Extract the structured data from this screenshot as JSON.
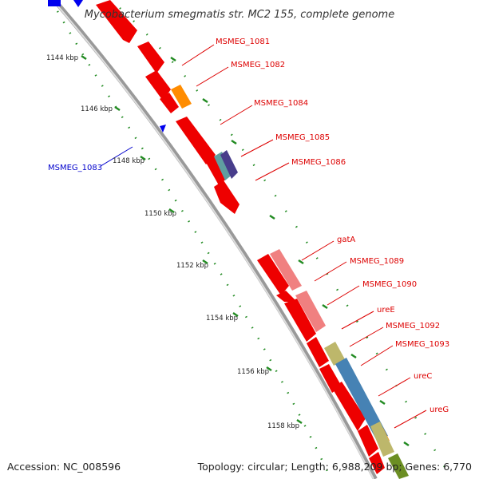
{
  "title": "Mycobacterium smegmatis str. MC2 155, complete genome",
  "footer": {
    "accession": "Accession: NC_008596",
    "topology": "Topology: circular; Length: 6,988,209 bp; Genes: 6,770"
  },
  "ruler_ticks": [
    "1144 kbp",
    "1146 kbp",
    "1148 kbp",
    "1150 kbp",
    "1152 kbp",
    "1154 kbp",
    "1156 kbp",
    "1158 kbp"
  ],
  "gene_labels": [
    {
      "name": "MSMEG_1081",
      "color": "#dd0000"
    },
    {
      "name": "MSMEG_1082",
      "color": "#dd0000"
    },
    {
      "name": "MSMEG_1084",
      "color": "#dd0000"
    },
    {
      "name": "MSMEG_1085",
      "color": "#dd0000"
    },
    {
      "name": "MSMEG_1086",
      "color": "#dd0000"
    },
    {
      "name": "MSMEG_1083",
      "color": "#0000cc"
    },
    {
      "name": "gatA",
      "color": "#dd0000"
    },
    {
      "name": "MSMEG_1089",
      "color": "#dd0000"
    },
    {
      "name": "MSMEG_1090",
      "color": "#dd0000"
    },
    {
      "name": "ureE",
      "color": "#dd0000"
    },
    {
      "name": "MSMEG_1092",
      "color": "#dd0000"
    },
    {
      "name": "MSMEG_1093",
      "color": "#dd0000"
    },
    {
      "name": "ureC",
      "color": "#dd0000"
    },
    {
      "name": "ureG",
      "color": "#dd0000"
    }
  ],
  "colors": {
    "forward_cds": "#ee0000",
    "reverse_cds": "#0000ee",
    "backbone": "#999999",
    "ruler_dots": "#228b22",
    "gatA_track": "#f08080",
    "ure_track_khaki": "#bdb76b",
    "ure_track_blue": "#4682b4",
    "orange_gene": "#ff8c00",
    "purple_gene": "#483d8b",
    "steel_gene": "#5f9ea0"
  }
}
